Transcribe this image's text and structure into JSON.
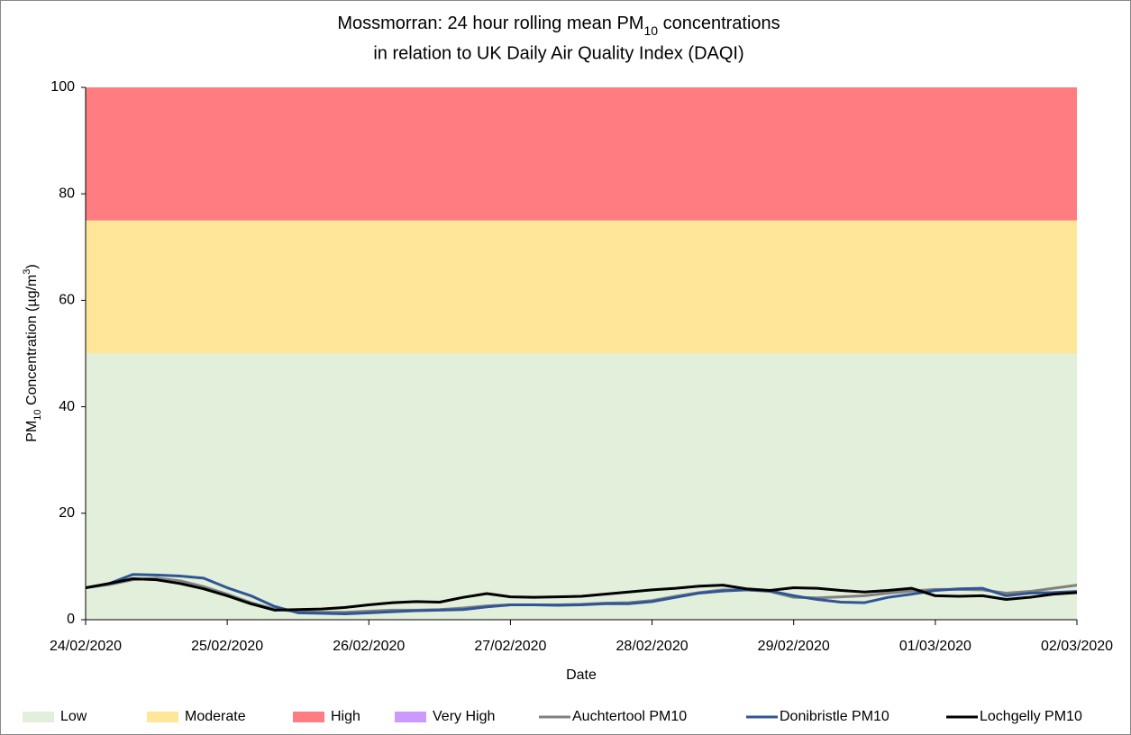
{
  "chart_data": {
    "type": "line",
    "title": {
      "line1": [
        "Mossmorran: 24 hour rolling mean PM",
        "10",
        " concentrations"
      ],
      "line2": "in relation to UK Daily Air Quality Index (DAQI)"
    },
    "y_label": [
      "PM",
      "10",
      " Concentration (µg/m",
      "3",
      ")"
    ],
    "x_label": "Date",
    "x": [
      0,
      4,
      8,
      12,
      16,
      20,
      24,
      28,
      32,
      36,
      40,
      44,
      48,
      52,
      56,
      60,
      64,
      68,
      72,
      76,
      80,
      84,
      88,
      92,
      96,
      100,
      104,
      108,
      112,
      116,
      120,
      124,
      128,
      132,
      136,
      140,
      144,
      148,
      152,
      156,
      160,
      164,
      168
    ],
    "xlim": [
      0,
      168
    ],
    "xticks": [
      {
        "value": 0,
        "label": "24/02/2020"
      },
      {
        "value": 24,
        "label": "25/02/2020"
      },
      {
        "value": 48,
        "label": "26/02/2020"
      },
      {
        "value": 72,
        "label": "27/02/2020"
      },
      {
        "value": 96,
        "label": "28/02/2020"
      },
      {
        "value": 120,
        "label": "29/02/2020"
      },
      {
        "value": 144,
        "label": "01/03/2020"
      },
      {
        "value": 168,
        "label": "02/03/2020"
      }
    ],
    "ylim": [
      0,
      100
    ],
    "yticks": [
      0,
      20,
      40,
      60,
      80,
      100
    ],
    "grid": false,
    "legend": "bottom",
    "bands": [
      {
        "name": "Low",
        "color": "#e2efda",
        "from": 0,
        "to": 50
      },
      {
        "name": "Moderate",
        "color": "#ffe699",
        "from": 50,
        "to": 75
      },
      {
        "name": "High",
        "color": "#ff7c80",
        "from": 75,
        "to": 100
      },
      {
        "name": "Very High",
        "color": "#cc99ff"
      }
    ],
    "series": [
      {
        "name": "Auchtertool PM10",
        "color": "#808080",
        "values": [
          6,
          6.6,
          7.5,
          7.8,
          7.3,
          6.2,
          4.8,
          3.2,
          2,
          1.5,
          1.4,
          1.4,
          1.6,
          1.8,
          1.8,
          1.9,
          2.2,
          2.6,
          2.8,
          2.8,
          2.8,
          2.9,
          3.1,
          3.2,
          3.6,
          4.4,
          5.1,
          5.6,
          5.6,
          5.3,
          4.2,
          4.1,
          4.3,
          4.5,
          5,
          5.4,
          5.7,
          5.7,
          5.6,
          5,
          5.3,
          5.9,
          6.5
        ]
      },
      {
        "name": "Donibristle PM10",
        "color": "#2f5597",
        "values": [
          6,
          6.8,
          8.5,
          8.4,
          8.2,
          7.8,
          6,
          4.5,
          2.5,
          1.3,
          1.2,
          1.1,
          1.3,
          1.5,
          1.7,
          1.8,
          1.9,
          2.4,
          2.8,
          2.8,
          2.7,
          2.8,
          3,
          3,
          3.4,
          4.2,
          5,
          5.4,
          5.6,
          5.4,
          4.5,
          3.8,
          3.3,
          3.2,
          4.2,
          4.8,
          5.5,
          5.8,
          5.9,
          4.5,
          5,
          5.1,
          5.3
        ]
      },
      {
        "name": "Lochgelly PM10",
        "color": "#000000",
        "values": [
          6,
          6.8,
          7.7,
          7.5,
          6.8,
          5.8,
          4.5,
          3,
          1.8,
          1.9,
          2,
          2.3,
          2.8,
          3.2,
          3.4,
          3.3,
          4.2,
          4.9,
          4.3,
          4.2,
          4.3,
          4.4,
          4.8,
          5.2,
          5.6,
          5.9,
          6.3,
          6.5,
          5.8,
          5.5,
          6,
          5.9,
          5.5,
          5.2,
          5.5,
          5.9,
          4.5,
          4.4,
          4.5,
          3.8,
          4.2,
          4.8,
          5.1
        ]
      }
    ]
  }
}
